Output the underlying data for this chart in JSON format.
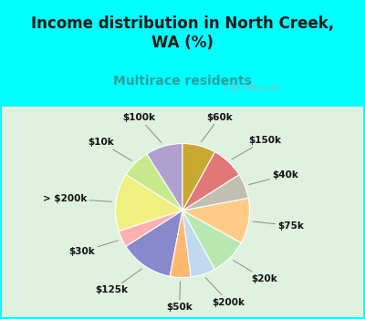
{
  "title": "Income distribution in North Creek,\nWA (%)",
  "subtitle": "Multirace residents",
  "title_color": "#1a1a1a",
  "subtitle_color": "#2aa0a0",
  "background_color": "#00ffff",
  "chart_bg_top": "#e8f5e0",
  "chart_bg_bottom": "#d0ead0",
  "labels": [
    "$100k",
    "$10k",
    "> $200k",
    "$30k",
    "$125k",
    "$50k",
    "$200k",
    "$20k",
    "$75k",
    "$40k",
    "$150k",
    "$60k"
  ],
  "values": [
    9,
    7,
    14,
    4,
    13,
    5,
    6,
    9,
    11,
    6,
    8,
    8
  ],
  "colors": [
    "#b0a0d0",
    "#c8e88c",
    "#f0f080",
    "#ffb0b0",
    "#8888cc",
    "#ffb870",
    "#c0d8f0",
    "#b8e8b0",
    "#ffcc88",
    "#c0bfb0",
    "#e07878",
    "#c8a830"
  ],
  "label_fontsize": 7.5,
  "title_fontsize": 12,
  "subtitle_fontsize": 10,
  "startangle": 90,
  "watermark": "  City-Data.com"
}
